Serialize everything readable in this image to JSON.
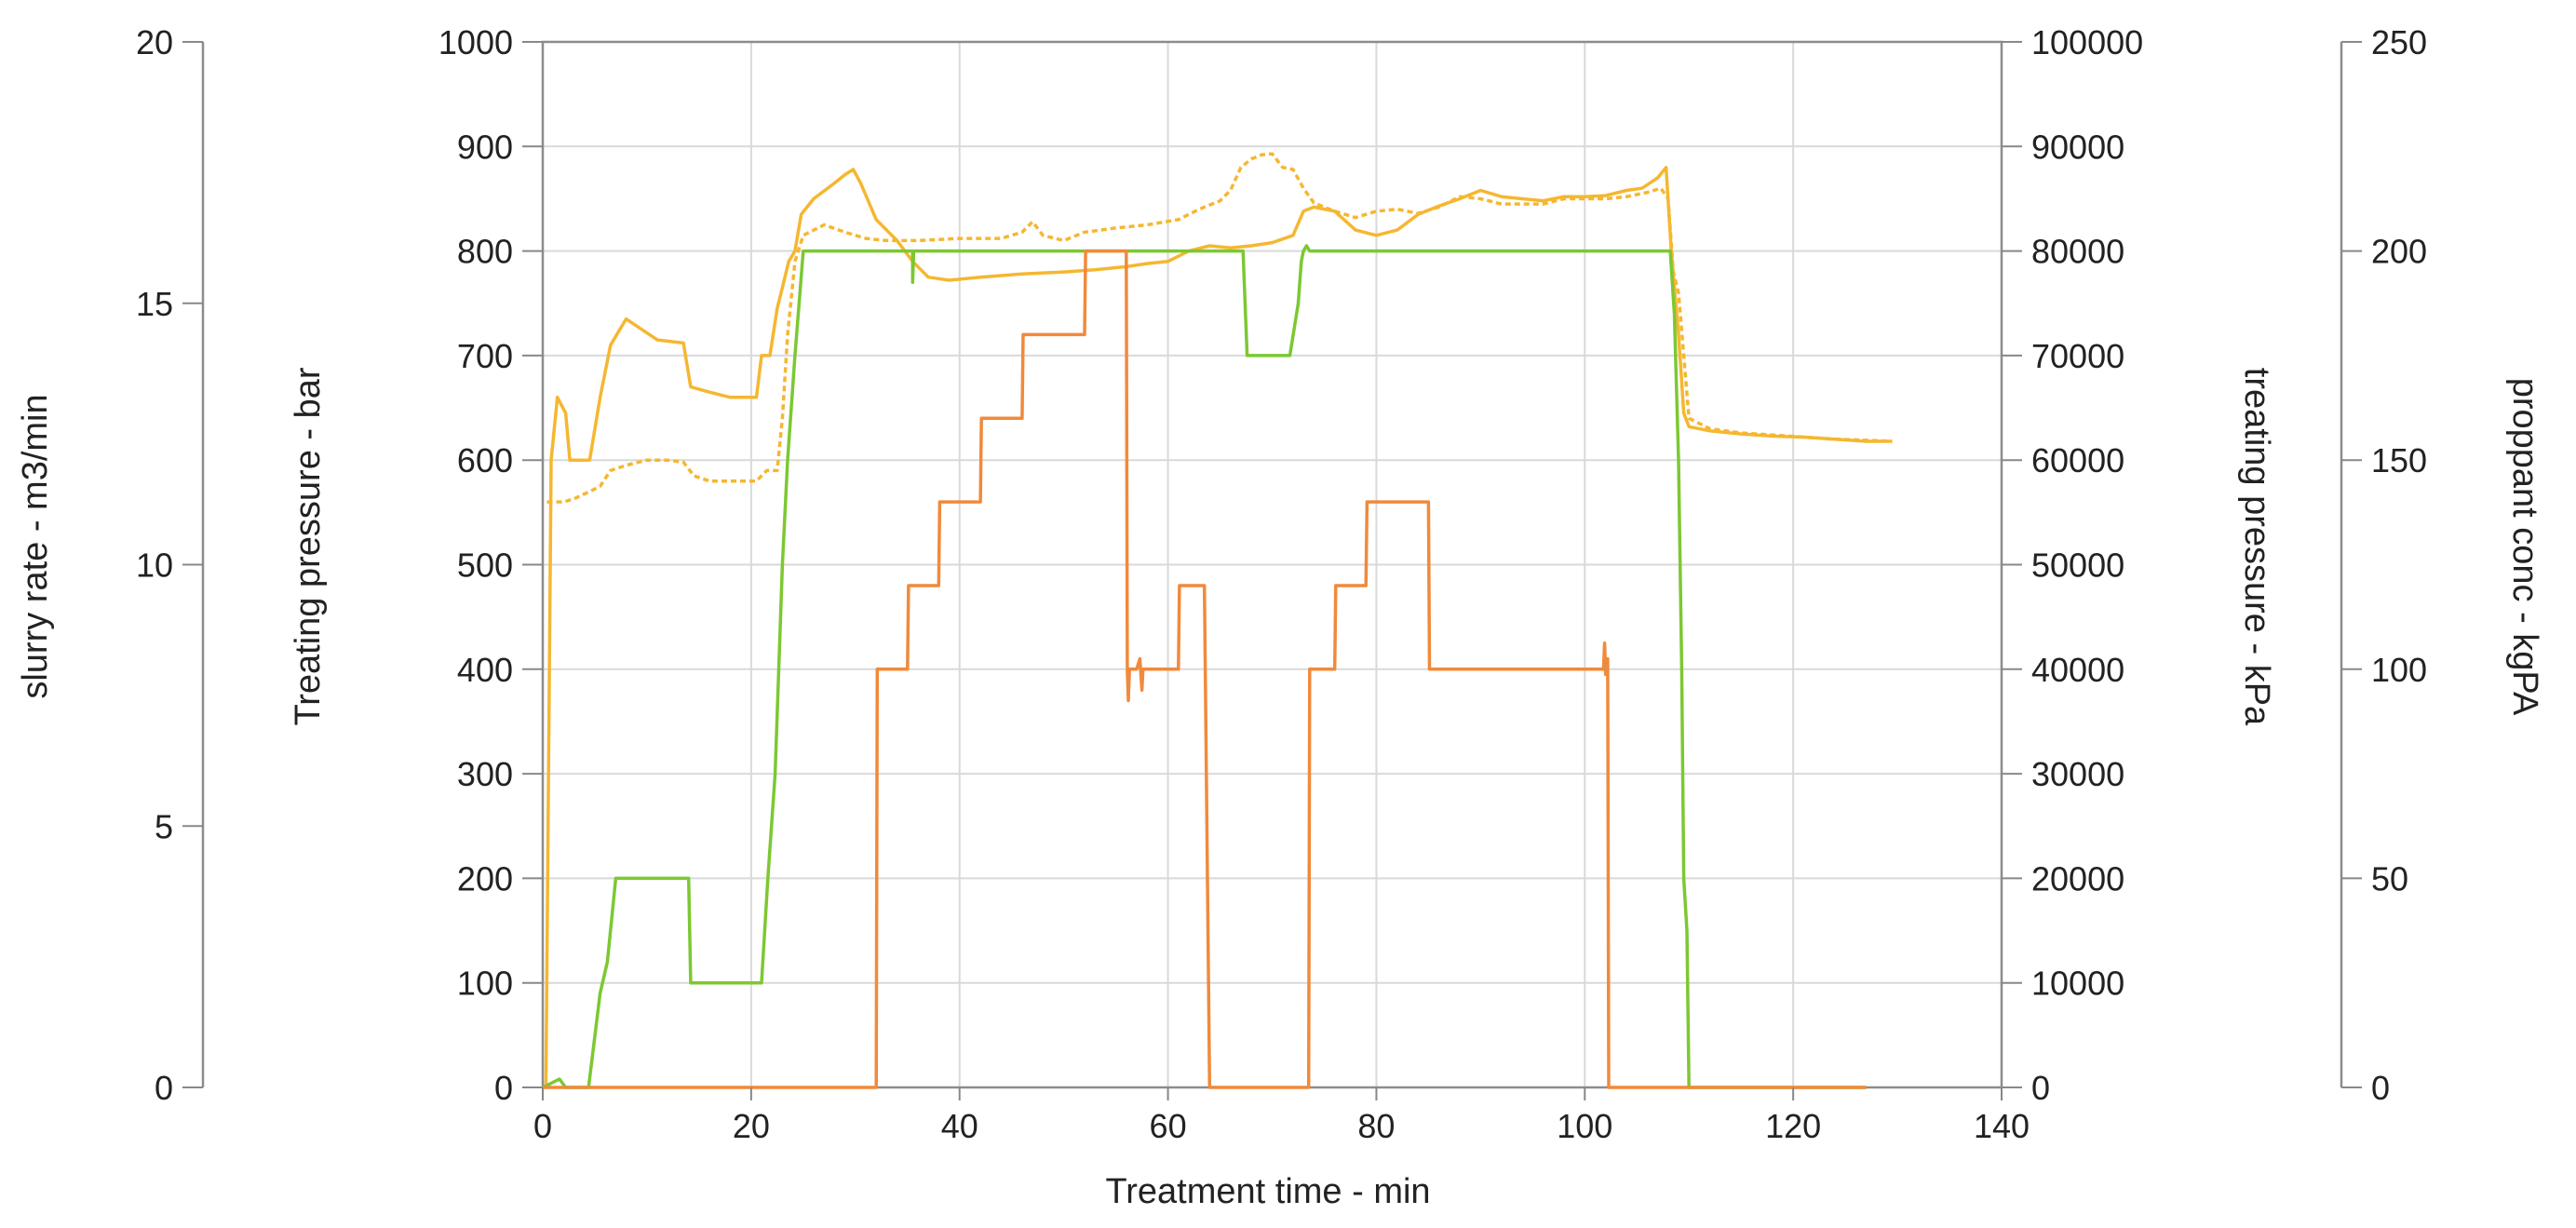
{
  "chart_data": {
    "type": "line",
    "xlabel": "Treatment time - min",
    "xlim": [
      0,
      140
    ],
    "x_ticks": [
      "0",
      "20",
      "40",
      "60",
      "80",
      "100",
      "120",
      "140"
    ],
    "grid": true,
    "axes": {
      "slurry_rate": {
        "label": "slurry rate - m3/min",
        "ylim": [
          0,
          20
        ],
        "ticks": [
          "0",
          "5",
          "10",
          "15",
          "20"
        ]
      },
      "treating_pressure_bar": {
        "label": "Treating pressure - bar",
        "ylim": [
          0,
          1000
        ],
        "ticks": [
          "0",
          "100",
          "200",
          "300",
          "400",
          "500",
          "600",
          "700",
          "800",
          "900",
          "1000"
        ]
      },
      "treating_pressure_kpa": {
        "label": "treating pressure - kPa",
        "ylim": [
          0,
          100000
        ],
        "ticks": [
          "0",
          "10000",
          "20000",
          "30000",
          "40000",
          "50000",
          "60000",
          "70000",
          "80000",
          "90000",
          "100000"
        ]
      },
      "proppant_conc": {
        "label": "proppant conc - kgPA",
        "ylim": [
          0,
          250
        ],
        "ticks": [
          "0",
          "50",
          "100",
          "150",
          "200",
          "250"
        ]
      }
    },
    "series": [
      {
        "axis": "treating_pressure_bar",
        "color": "#f5b731",
        "dash": "none",
        "points": [
          [
            0.3,
            0
          ],
          [
            0.8,
            600
          ],
          [
            1.4,
            660
          ],
          [
            2.2,
            645
          ],
          [
            2.6,
            600
          ],
          [
            4.5,
            600
          ],
          [
            5.5,
            660
          ],
          [
            6.5,
            710
          ],
          [
            8,
            735
          ],
          [
            9.5,
            725
          ],
          [
            11,
            715
          ],
          [
            13.5,
            712
          ],
          [
            14.2,
            670
          ],
          [
            16,
            665
          ],
          [
            18,
            660
          ],
          [
            20.5,
            660
          ],
          [
            21,
            700
          ],
          [
            21.8,
            700
          ],
          [
            22.5,
            745
          ],
          [
            23,
            765
          ],
          [
            23.6,
            790
          ],
          [
            24.2,
            800
          ],
          [
            24.8,
            835
          ],
          [
            26,
            850
          ],
          [
            28,
            865
          ],
          [
            29,
            873
          ],
          [
            29.8,
            878
          ],
          [
            30.5,
            865
          ],
          [
            32,
            830
          ],
          [
            34,
            810
          ],
          [
            35.5,
            790
          ],
          [
            37,
            775
          ],
          [
            39,
            772
          ],
          [
            42,
            775
          ],
          [
            46,
            778
          ],
          [
            50,
            780
          ],
          [
            53,
            782
          ],
          [
            56,
            785
          ],
          [
            58,
            788
          ],
          [
            60,
            790
          ],
          [
            62,
            800
          ],
          [
            64,
            805
          ],
          [
            66,
            803
          ],
          [
            68,
            805
          ],
          [
            70,
            808
          ],
          [
            72,
            815
          ],
          [
            73,
            838
          ],
          [
            74,
            842
          ],
          [
            76,
            838
          ],
          [
            78,
            820
          ],
          [
            80,
            815
          ],
          [
            82,
            820
          ],
          [
            84,
            835
          ],
          [
            86,
            843
          ],
          [
            88,
            850
          ],
          [
            90,
            858
          ],
          [
            92,
            852
          ],
          [
            94,
            850
          ],
          [
            96,
            848
          ],
          [
            98,
            852
          ],
          [
            100,
            852
          ],
          [
            102,
            853
          ],
          [
            104,
            858
          ],
          [
            105.5,
            860
          ],
          [
            107,
            870
          ],
          [
            107.8,
            880
          ],
          [
            108.3,
            800
          ],
          [
            109,
            720
          ],
          [
            109.5,
            645
          ],
          [
            110,
            632
          ],
          [
            112,
            628
          ],
          [
            115,
            625
          ],
          [
            118,
            623
          ],
          [
            121,
            622
          ],
          [
            124,
            620
          ],
          [
            127,
            618
          ],
          [
            129.5,
            618
          ]
        ]
      },
      {
        "axis": "treating_pressure_bar",
        "color": "#f5b731",
        "dash": "6,4",
        "points": [
          [
            0.4,
            560
          ],
          [
            2,
            560
          ],
          [
            3,
            563
          ],
          [
            4.5,
            570
          ],
          [
            5.5,
            575
          ],
          [
            6.5,
            590
          ],
          [
            8,
            595
          ],
          [
            10,
            600
          ],
          [
            12,
            600
          ],
          [
            13.5,
            598
          ],
          [
            14.5,
            585
          ],
          [
            16,
            580
          ],
          [
            18,
            580
          ],
          [
            20.5,
            580
          ],
          [
            21.5,
            590
          ],
          [
            22.5,
            590
          ],
          [
            23,
            640
          ],
          [
            23.5,
            720
          ],
          [
            24.2,
            790
          ],
          [
            25,
            815
          ],
          [
            27,
            825
          ],
          [
            29,
            818
          ],
          [
            31,
            812
          ],
          [
            33,
            810
          ],
          [
            36,
            810
          ],
          [
            40,
            812
          ],
          [
            44,
            812
          ],
          [
            46,
            818
          ],
          [
            47,
            828
          ],
          [
            48,
            815
          ],
          [
            50,
            810
          ],
          [
            52,
            818
          ],
          [
            55,
            822
          ],
          [
            58,
            825
          ],
          [
            61,
            830
          ],
          [
            63,
            840
          ],
          [
            65,
            848
          ],
          [
            66,
            858
          ],
          [
            67,
            880
          ],
          [
            68,
            888
          ],
          [
            69,
            892
          ],
          [
            70,
            893
          ],
          [
            71,
            880
          ],
          [
            72,
            878
          ],
          [
            73,
            860
          ],
          [
            74,
            846
          ],
          [
            76,
            838
          ],
          [
            78,
            832
          ],
          [
            80,
            838
          ],
          [
            82,
            840
          ],
          [
            84,
            836
          ],
          [
            86,
            842
          ],
          [
            88,
            852
          ],
          [
            90,
            850
          ],
          [
            92,
            845
          ],
          [
            94,
            845
          ],
          [
            96,
            845
          ],
          [
            98,
            850
          ],
          [
            100,
            850
          ],
          [
            102,
            850
          ],
          [
            104,
            852
          ],
          [
            106,
            856
          ],
          [
            107.3,
            860
          ],
          [
            108,
            850
          ],
          [
            108.5,
            780
          ],
          [
            109,
            760
          ],
          [
            109.5,
            700
          ],
          [
            110,
            640
          ],
          [
            112,
            630
          ],
          [
            115,
            626
          ],
          [
            118,
            624
          ],
          [
            121,
            622
          ],
          [
            124,
            620
          ],
          [
            127,
            619
          ],
          [
            129.5,
            618
          ]
        ]
      },
      {
        "axis": "treating_pressure_bar",
        "color": "#7cc832",
        "dash": "none",
        "points": [
          [
            0,
            0
          ],
          [
            1,
            5
          ],
          [
            1.6,
            8
          ],
          [
            2.2,
            0
          ],
          [
            4.4,
            0
          ],
          [
            5.5,
            90
          ],
          [
            6.2,
            120
          ],
          [
            7,
            200
          ],
          [
            14,
            200
          ],
          [
            14.2,
            100
          ],
          [
            21,
            100
          ],
          [
            21.6,
            200
          ],
          [
            22.3,
            300
          ],
          [
            23,
            500
          ],
          [
            23.5,
            600
          ],
          [
            24.2,
            700
          ],
          [
            25,
            800
          ],
          [
            35.5,
            800
          ],
          [
            35.5,
            770
          ],
          [
            35.6,
            800
          ],
          [
            67.2,
            800
          ],
          [
            67.6,
            700
          ],
          [
            71.7,
            700
          ],
          [
            72.5,
            750
          ],
          [
            72.8,
            790
          ],
          [
            73,
            800
          ],
          [
            73.3,
            805
          ],
          [
            73.6,
            800
          ],
          [
            108.2,
            800
          ],
          [
            108.6,
            740
          ],
          [
            109,
            600
          ],
          [
            109.3,
            400
          ],
          [
            109.5,
            200
          ],
          [
            109.8,
            150
          ],
          [
            110,
            0
          ],
          [
            127,
            0
          ]
        ]
      },
      {
        "axis": "treating_pressure_bar",
        "color": "#f08a3c",
        "dash": "none",
        "points": [
          [
            0,
            0
          ],
          [
            32,
            0
          ],
          [
            32.1,
            400
          ],
          [
            35,
            400
          ],
          [
            35.1,
            480
          ],
          [
            38,
            480
          ],
          [
            38.1,
            560
          ],
          [
            42,
            560
          ],
          [
            42.1,
            640
          ],
          [
            46,
            640
          ],
          [
            46.1,
            720
          ],
          [
            52,
            720
          ],
          [
            52.1,
            800
          ],
          [
            56,
            800
          ],
          [
            56.1,
            400
          ],
          [
            56.2,
            370
          ],
          [
            56.3,
            400
          ],
          [
            57,
            400
          ],
          [
            57.3,
            410
          ],
          [
            57.5,
            380
          ],
          [
            57.6,
            400
          ],
          [
            61,
            400
          ],
          [
            61.1,
            480
          ],
          [
            63.5,
            480
          ],
          [
            64,
            0
          ],
          [
            73.5,
            0
          ],
          [
            73.6,
            400
          ],
          [
            76,
            400
          ],
          [
            76.1,
            480
          ],
          [
            79,
            480
          ],
          [
            79.1,
            560
          ],
          [
            85,
            560
          ],
          [
            85.1,
            400
          ],
          [
            101.8,
            400
          ],
          [
            101.9,
            425
          ],
          [
            102,
            395
          ],
          [
            102.2,
            410
          ],
          [
            102.3,
            0
          ],
          [
            127,
            0
          ]
        ]
      }
    ]
  }
}
